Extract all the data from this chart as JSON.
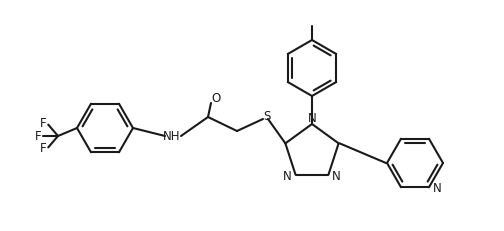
{
  "background_color": "#ffffff",
  "line_color": "#1a1a1a",
  "line_width": 1.5,
  "font_size": 8.5,
  "figsize": [
    5.04,
    2.31
  ],
  "dpi": 100,
  "xlim": [
    0,
    504
  ],
  "ylim": [
    0,
    231
  ]
}
